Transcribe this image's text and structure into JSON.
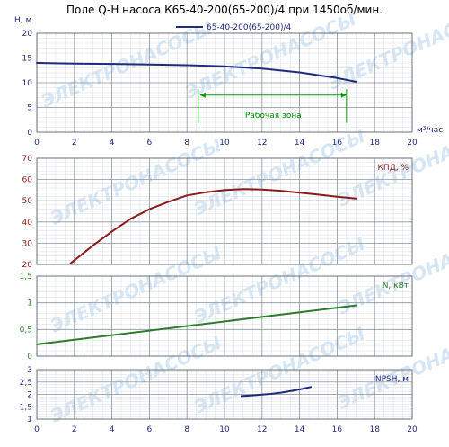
{
  "chart_data": {
    "type": "line",
    "title": "Поле Q-H насоса К65-40-200(65-200)/4 при 1450об/мин.",
    "legend": {
      "entries": [
        "65-40-200(65-200)/4"
      ],
      "placement": "top-right"
    },
    "x_axis": {
      "label": "м³/час",
      "range": [
        0,
        20
      ],
      "ticks": [
        "0",
        "2",
        "4",
        "6",
        "8",
        "10",
        "12",
        "14",
        "16",
        "18",
        "20"
      ]
    },
    "grid": true,
    "watermark": "ЭЛЕКТРОНАСОСЫ",
    "panels": [
      {
        "key": "head",
        "label": "Н, м",
        "ylim": [
          0,
          20
        ],
        "yticks": [
          "0",
          "5",
          "10",
          "15",
          "20"
        ],
        "color": "#1f2a7a",
        "series": {
          "name": "65-40-200(65-200)/4",
          "x": [
            0,
            2,
            4,
            6,
            8,
            10,
            12,
            14,
            16,
            17
          ],
          "y": [
            14.0,
            13.85,
            13.8,
            13.7,
            13.55,
            13.3,
            12.85,
            12.1,
            10.95,
            10.2
          ]
        },
        "annotation": {
          "text": "Рабочая зона",
          "color": "#009900",
          "x_range": [
            8.7,
            16.5
          ],
          "x_markers": [
            8.6,
            16.5
          ]
        }
      },
      {
        "key": "efficiency",
        "label": "КПД, %",
        "ylim": [
          20,
          70
        ],
        "yticks": [
          "20",
          "30",
          "40",
          "50",
          "60",
          "70"
        ],
        "color": "#8b1a1a",
        "series": {
          "x": [
            1.8,
            3,
            4,
            5,
            6,
            7,
            8,
            9,
            10,
            11,
            12,
            13,
            14,
            15,
            16,
            17
          ],
          "y": [
            20.5,
            29,
            35.5,
            41.5,
            46,
            49.5,
            52.5,
            54.0,
            55.0,
            55.5,
            55.3,
            54.7,
            53.8,
            52.9,
            51.9,
            51.0
          ]
        }
      },
      {
        "key": "power",
        "label": "N, кВт",
        "ylim": [
          0,
          1.5
        ],
        "yticks": [
          "0",
          "0,5",
          "1",
          "1,5"
        ],
        "color": "#2e7d2e",
        "series": {
          "x": [
            0,
            17
          ],
          "y": [
            0.22,
            0.95
          ]
        }
      },
      {
        "key": "npsh",
        "label": "NPSH, м",
        "ylim": [
          1,
          3
        ],
        "yticks": [
          "1",
          "1,5",
          "2",
          "2,5",
          "3"
        ],
        "color": "#1f2a7a",
        "series": {
          "x": [
            10.9,
            11.5,
            12,
            12.5,
            13,
            13.5,
            14,
            14.6
          ],
          "y": [
            1.93,
            1.96,
            1.99,
            2.02,
            2.07,
            2.13,
            2.2,
            2.3
          ]
        }
      }
    ]
  }
}
